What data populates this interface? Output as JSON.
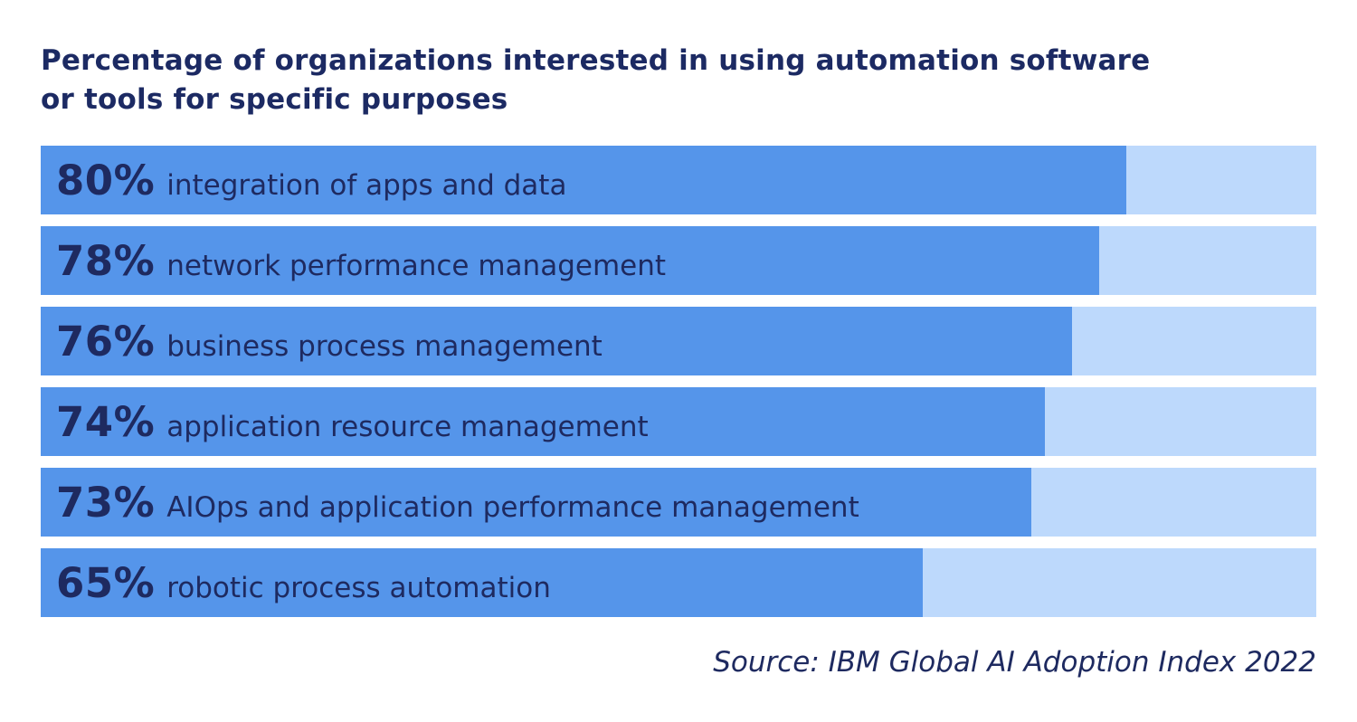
{
  "title": {
    "line1": "Percentage of organizations interested in using automation software",
    "line2": "or tools for specific purposes"
  },
  "source": "Source: IBM Global AI Adoption Index 2022",
  "colors": {
    "bar_fill": "#5595EA",
    "bar_track": "#BDD9FC",
    "text_navy": "#1E2A60",
    "background": "#FFFFFF"
  },
  "chart_data": {
    "type": "bar",
    "orientation": "horizontal",
    "title": "Percentage of organizations interested in using automation software or tools for specific purposes",
    "xlabel": "",
    "ylabel": "",
    "xlim": [
      0,
      100
    ],
    "unit": "%",
    "grid": false,
    "legend": "none",
    "annotation": "Source: IBM Global AI Adoption Index 2022",
    "categories": [
      "integration of apps and data",
      "network performance management",
      "business process management",
      "application resource management",
      "AIOps and application performance management",
      "robotic process automation"
    ],
    "values": [
      80,
      78,
      76,
      74,
      73,
      65
    ],
    "bars": [
      {
        "pct_label": "80%",
        "value": 80,
        "label": "integration of apps and data"
      },
      {
        "pct_label": "78%",
        "value": 78,
        "label": "network performance management"
      },
      {
        "pct_label": "76%",
        "value": 76,
        "label": "business process management"
      },
      {
        "pct_label": "74%",
        "value": 74,
        "label": "application resource management"
      },
      {
        "pct_label": "73%",
        "value": 73,
        "label": "AIOps and application performance management"
      },
      {
        "pct_label": "65%",
        "value": 65,
        "label": "robotic process automation"
      }
    ]
  }
}
